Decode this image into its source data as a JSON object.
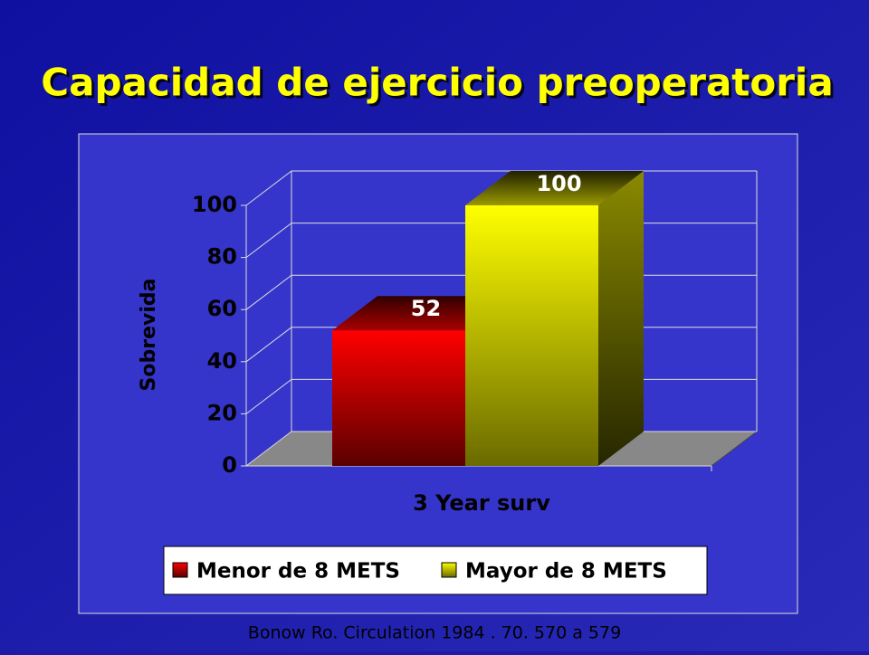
{
  "chart_data": {
    "type": "bar3d",
    "title": "Capacidad de ejercicio preoperatoria",
    "source": "Bonow Ro.  Circulation 1984 .  70.  570 a 579",
    "categories": [
      "3 Year surv"
    ],
    "x_label": "3 Year surv",
    "y_label": "Sobrevida",
    "series": [
      {
        "name": "Menor de 8 METS",
        "color": "#ff0000",
        "values": [
          52
        ]
      },
      {
        "name": "Mayor de 8 METS",
        "color": "#ffff00",
        "values": [
          100
        ]
      }
    ],
    "ylim": [
      0,
      100
    ],
    "yticks": [
      0,
      20,
      40,
      60,
      80,
      100
    ],
    "grid": true,
    "legend": "bottom"
  }
}
